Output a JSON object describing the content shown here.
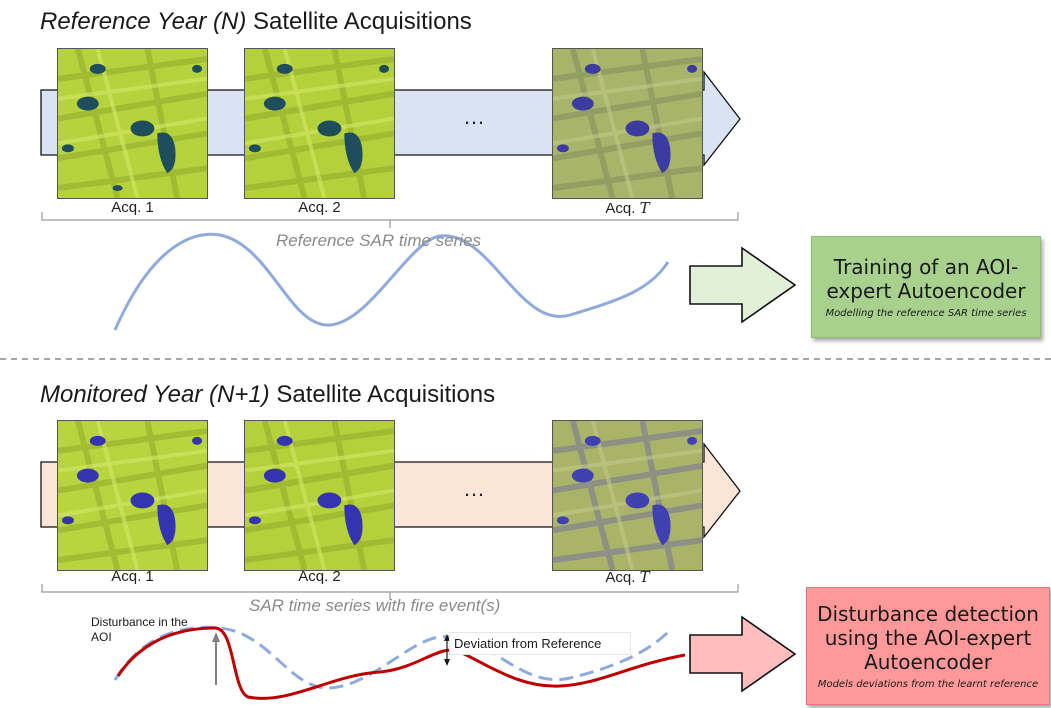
{
  "top": {
    "title_italic": "Reference Year (N)",
    "title_rest": " Satellite Acquisitions",
    "acq_labels": [
      "Acq. 1",
      "Acq. 2",
      "Acq."
    ],
    "acq_t": "T",
    "ellipsis": "…",
    "series_label": "Reference SAR time series",
    "box_main": "Training of an AOI-expert Autoencoder",
    "box_sub": "Modelling the reference SAR time series",
    "colors": {
      "band": "#dae3f3",
      "box": "#a9d18e",
      "curve": "#8faadc",
      "arrow_fill": "#e2f0d9"
    }
  },
  "bottom": {
    "title_italic": "Monitored Year (N+1)",
    "title_rest": " Satellite Acquisitions",
    "acq_labels": [
      "Acq. 1",
      "Acq. 2",
      "Acq."
    ],
    "acq_t": "T",
    "ellipsis": "…",
    "series_label": "SAR time series with fire event(s)",
    "disturbance_label": "Disturbance in the AOI",
    "deviation_label": "Deviation from Reference",
    "box_main": "Disturbance detection using the AOI-expert Autoencoder",
    "box_sub": "Models deviations from the learnt reference",
    "colors": {
      "band": "#fbe5d6",
      "box": "#ff9999",
      "curve": "#c00000",
      "dashed": "#8faadc",
      "arrow_fill": "#ffbdbd"
    }
  },
  "divider_color": "#a6a6a6"
}
